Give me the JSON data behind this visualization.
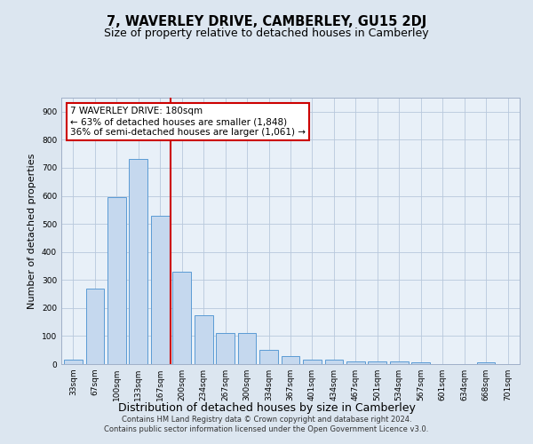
{
  "title": "7, WAVERLEY DRIVE, CAMBERLEY, GU15 2DJ",
  "subtitle": "Size of property relative to detached houses in Camberley",
  "xlabel": "Distribution of detached houses by size in Camberley",
  "ylabel": "Number of detached properties",
  "categories": [
    "33sqm",
    "67sqm",
    "100sqm",
    "133sqm",
    "167sqm",
    "200sqm",
    "234sqm",
    "267sqm",
    "300sqm",
    "334sqm",
    "367sqm",
    "401sqm",
    "434sqm",
    "467sqm",
    "501sqm",
    "534sqm",
    "567sqm",
    "601sqm",
    "634sqm",
    "668sqm",
    "701sqm"
  ],
  "values": [
    15,
    270,
    595,
    730,
    530,
    330,
    175,
    110,
    110,
    50,
    27,
    15,
    15,
    10,
    10,
    10,
    5,
    0,
    0,
    5,
    0
  ],
  "bar_color": "#c5d8ee",
  "bar_edge_color": "#5b9bd5",
  "vline_color": "#cc0000",
  "annotation_text": "7 WAVERLEY DRIVE: 180sqm\n← 63% of detached houses are smaller (1,848)\n36% of semi-detached houses are larger (1,061) →",
  "annotation_box_color": "#ffffff",
  "annotation_box_edge_color": "#cc0000",
  "ylim": [
    0,
    950
  ],
  "yticks": [
    0,
    100,
    200,
    300,
    400,
    500,
    600,
    700,
    800,
    900
  ],
  "footer": "Contains HM Land Registry data © Crown copyright and database right 2024.\nContains public sector information licensed under the Open Government Licence v3.0.",
  "bg_color": "#dce6f0",
  "plot_bg_color": "#e8f0f8",
  "grid_color": "#b8c8dc",
  "title_fontsize": 10.5,
  "subtitle_fontsize": 9,
  "tick_fontsize": 6.5,
  "ylabel_fontsize": 8,
  "xlabel_fontsize": 9,
  "footer_fontsize": 6,
  "annotation_fontsize": 7.5
}
